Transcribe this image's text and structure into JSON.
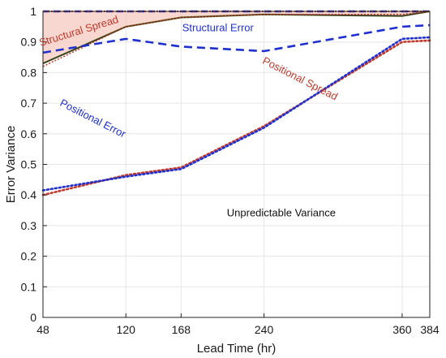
{
  "chart_data": {
    "type": "line",
    "title": "",
    "xlabel": "Lead Time (hr)",
    "ylabel": "Error Variance",
    "xlim": [
      48,
      384
    ],
    "ylim": [
      0,
      1
    ],
    "xticks": [
      48,
      120,
      168,
      240,
      360,
      384
    ],
    "yticks": [
      0,
      0.1,
      0.2,
      0.3,
      0.4,
      0.5,
      0.6,
      0.7,
      0.8,
      0.9,
      1
    ],
    "grid": true,
    "legend": "none",
    "colors": {
      "spread": "#c0392b",
      "error": "#1f2fd0",
      "fill": "#f4c9c0",
      "envelope": "#222222",
      "envelope_top": "#6b7a2e"
    },
    "series": [
      {
        "key": "structural_spread",
        "x": [
          48,
          120,
          168,
          240,
          360,
          384
        ],
        "y": [
          0.82,
          0.95,
          0.98,
          0.99,
          0.99,
          1.0
        ]
      },
      {
        "key": "structural_error",
        "x": [
          48,
          120,
          168,
          240,
          360,
          384
        ],
        "y": [
          0.865,
          0.91,
          0.885,
          0.87,
          0.95,
          0.955
        ]
      },
      {
        "key": "positional_spread",
        "x": [
          48,
          120,
          168,
          240,
          360,
          384
        ],
        "y": [
          0.4,
          0.465,
          0.49,
          0.625,
          0.9,
          0.905
        ]
      },
      {
        "key": "positional_error",
        "x": [
          48,
          120,
          168,
          240,
          360,
          384
        ],
        "y": [
          0.415,
          0.46,
          0.485,
          0.62,
          0.91,
          0.915
        ]
      },
      {
        "key": "structural_envelope",
        "x": [
          48,
          120,
          168,
          240,
          360,
          384
        ],
        "y": [
          0.83,
          0.95,
          0.98,
          0.99,
          0.985,
          1.0
        ]
      }
    ],
    "annotations": [
      {
        "text": "Structural Spread",
        "x": 80,
        "y": 0.925,
        "rotate": -17,
        "color": "#c0392b"
      },
      {
        "text": "Structural Error",
        "x": 200,
        "y": 0.935,
        "rotate": 0,
        "color": "#1f2fd0"
      },
      {
        "text": "Positional Spread",
        "x": 270,
        "y": 0.77,
        "rotate": 27,
        "color": "#c0392b"
      },
      {
        "text": "Positional Error",
        "x": 90,
        "y": 0.64,
        "rotate": 27,
        "color": "#1f2fd0"
      },
      {
        "text": "Unpredictable Variance",
        "x": 255,
        "y": 0.33,
        "rotate": 0,
        "color": "#111111"
      }
    ]
  }
}
